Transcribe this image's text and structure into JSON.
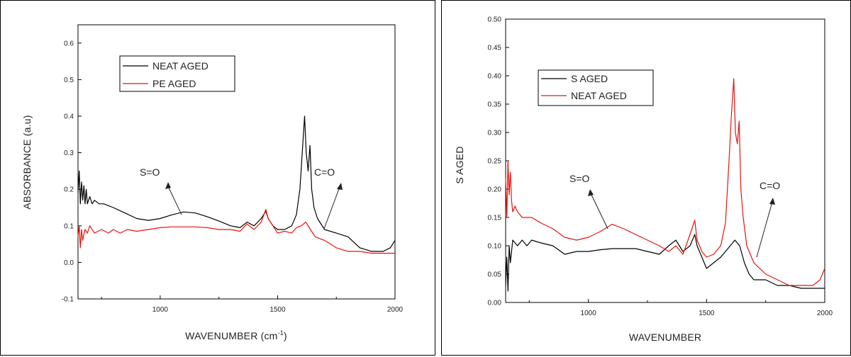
{
  "chart_data": [
    {
      "type": "line",
      "xlabel": "WAVENUMBER (cm",
      "xlabel_superscript": "-1",
      "xlabel_suffix": ")",
      "ylabel": "ABSORBANCE (a.u)",
      "xlim": [
        650,
        2000
      ],
      "ylim": [
        -0.1,
        0.65
      ],
      "x_ticks": [
        1000,
        1500,
        2000
      ],
      "y_ticks": [
        -0.1,
        0.0,
        0.1,
        0.2,
        0.3,
        0.4,
        0.5,
        0.6
      ],
      "y_tick_labels": [
        "-0.1",
        "0.0",
        "0.1",
        "0.2",
        "0.3",
        "0.4",
        "0.5",
        "0.6"
      ],
      "legend_placement": "upper-left",
      "series": [
        {
          "name": "NEAT AGED",
          "color": "#000000",
          "points": [
            [
              650,
              0.19
            ],
            [
              655,
              0.25
            ],
            [
              660,
              0.16
            ],
            [
              665,
              0.22
            ],
            [
              670,
              0.17
            ],
            [
              675,
              0.21
            ],
            [
              680,
              0.16
            ],
            [
              685,
              0.2
            ],
            [
              690,
              0.16
            ],
            [
              700,
              0.18
            ],
            [
              710,
              0.16
            ],
            [
              720,
              0.17
            ],
            [
              740,
              0.16
            ],
            [
              760,
              0.16
            ],
            [
              800,
              0.15
            ],
            [
              850,
              0.135
            ],
            [
              900,
              0.12
            ],
            [
              950,
              0.115
            ],
            [
              1000,
              0.12
            ],
            [
              1050,
              0.13
            ],
            [
              1100,
              0.138
            ],
            [
              1150,
              0.135
            ],
            [
              1200,
              0.125
            ],
            [
              1250,
              0.113
            ],
            [
              1300,
              0.1
            ],
            [
              1340,
              0.095
            ],
            [
              1370,
              0.11
            ],
            [
              1400,
              0.1
            ],
            [
              1430,
              0.12
            ],
            [
              1450,
              0.14
            ],
            [
              1460,
              0.12
            ],
            [
              1480,
              0.1
            ],
            [
              1500,
              0.09
            ],
            [
              1530,
              0.09
            ],
            [
              1560,
              0.1
            ],
            [
              1580,
              0.13
            ],
            [
              1595,
              0.2
            ],
            [
              1605,
              0.3
            ],
            [
              1615,
              0.4
            ],
            [
              1622,
              0.3
            ],
            [
              1630,
              0.25
            ],
            [
              1638,
              0.32
            ],
            [
              1645,
              0.2
            ],
            [
              1655,
              0.15
            ],
            [
              1670,
              0.12
            ],
            [
              1700,
              0.09
            ],
            [
              1750,
              0.08
            ],
            [
              1800,
              0.07
            ],
            [
              1850,
              0.04
            ],
            [
              1900,
              0.03
            ],
            [
              1950,
              0.03
            ],
            [
              1980,
              0.04
            ],
            [
              2000,
              0.06
            ]
          ]
        },
        {
          "name": "PE AGED",
          "color": "#e8140e",
          "points": [
            [
              650,
              0.07
            ],
            [
              655,
              0.1
            ],
            [
              660,
              0.04
            ],
            [
              665,
              0.09
            ],
            [
              670,
              0.06
            ],
            [
              680,
              0.09
            ],
            [
              690,
              0.08
            ],
            [
              700,
              0.1
            ],
            [
              720,
              0.08
            ],
            [
              750,
              0.09
            ],
            [
              780,
              0.08
            ],
            [
              800,
              0.09
            ],
            [
              830,
              0.08
            ],
            [
              860,
              0.09
            ],
            [
              900,
              0.085
            ],
            [
              950,
              0.09
            ],
            [
              1000,
              0.095
            ],
            [
              1050,
              0.097
            ],
            [
              1100,
              0.097
            ],
            [
              1150,
              0.097
            ],
            [
              1200,
              0.095
            ],
            [
              1250,
              0.09
            ],
            [
              1300,
              0.09
            ],
            [
              1340,
              0.085
            ],
            [
              1370,
              0.105
            ],
            [
              1400,
              0.09
            ],
            [
              1430,
              0.11
            ],
            [
              1450,
              0.145
            ],
            [
              1460,
              0.12
            ],
            [
              1480,
              0.1
            ],
            [
              1500,
              0.08
            ],
            [
              1530,
              0.085
            ],
            [
              1560,
              0.08
            ],
            [
              1580,
              0.095
            ],
            [
              1600,
              0.1
            ],
            [
              1620,
              0.11
            ],
            [
              1640,
              0.09
            ],
            [
              1660,
              0.07
            ],
            [
              1700,
              0.06
            ],
            [
              1750,
              0.04
            ],
            [
              1800,
              0.03
            ],
            [
              1850,
              0.03
            ],
            [
              1900,
              0.025
            ],
            [
              1950,
              0.025
            ],
            [
              2000,
              0.025
            ]
          ]
        }
      ],
      "annotations": [
        {
          "text": "S=O",
          "x": 1000,
          "y": 0.18,
          "arrow_to": [
            1000,
            0.22
          ]
        },
        {
          "text": "C=O",
          "x": 1680,
          "y": 0.2,
          "arrow_to": [
            1680,
            0.21
          ]
        }
      ]
    },
    {
      "type": "line",
      "xlabel": "WAVENUMBER",
      "ylabel": "S AGED",
      "xlim": [
        650,
        2000
      ],
      "ylim": [
        0.0,
        0.5
      ],
      "x_ticks": [
        1000,
        1500,
        2000
      ],
      "y_ticks": [
        0.0,
        0.05,
        0.1,
        0.15,
        0.2,
        0.25,
        0.3,
        0.35,
        0.4,
        0.45,
        0.5
      ],
      "y_tick_labels": [
        "0.00",
        "0.05",
        "0.10",
        "0.15",
        "0.20",
        "0.25",
        "0.30",
        "0.35",
        "0.40",
        "0.45",
        "0.50"
      ],
      "legend_placement": "upper-left",
      "series": [
        {
          "name": "S AGED",
          "color": "#000000",
          "points": [
            [
              650,
              0.03
            ],
            [
              655,
              0.08
            ],
            [
              660,
              0.02
            ],
            [
              665,
              0.1
            ],
            [
              670,
              0.07
            ],
            [
              680,
              0.11
            ],
            [
              700,
              0.1
            ],
            [
              720,
              0.11
            ],
            [
              740,
              0.1
            ],
            [
              760,
              0.11
            ],
            [
              800,
              0.105
            ],
            [
              850,
              0.1
            ],
            [
              900,
              0.085
            ],
            [
              950,
              0.09
            ],
            [
              1000,
              0.09
            ],
            [
              1050,
              0.093
            ],
            [
              1100,
              0.095
            ],
            [
              1150,
              0.095
            ],
            [
              1200,
              0.095
            ],
            [
              1250,
              0.09
            ],
            [
              1300,
              0.085
            ],
            [
              1340,
              0.1
            ],
            [
              1370,
              0.11
            ],
            [
              1400,
              0.09
            ],
            [
              1430,
              0.1
            ],
            [
              1450,
              0.12
            ],
            [
              1460,
              0.1
            ],
            [
              1480,
              0.08
            ],
            [
              1500,
              0.06
            ],
            [
              1530,
              0.07
            ],
            [
              1560,
              0.08
            ],
            [
              1580,
              0.09
            ],
            [
              1600,
              0.1
            ],
            [
              1620,
              0.11
            ],
            [
              1640,
              0.1
            ],
            [
              1660,
              0.07
            ],
            [
              1680,
              0.05
            ],
            [
              1700,
              0.04
            ],
            [
              1750,
              0.04
            ],
            [
              1800,
              0.03
            ],
            [
              1850,
              0.03
            ],
            [
              1900,
              0.025
            ],
            [
              1950,
              0.025
            ],
            [
              2000,
              0.025
            ]
          ]
        },
        {
          "name": "NEAT AGED",
          "color": "#e8140e",
          "points": [
            [
              650,
              0.22
            ],
            [
              655,
              0.15
            ],
            [
              660,
              0.25
            ],
            [
              665,
              0.19
            ],
            [
              670,
              0.23
            ],
            [
              675,
              0.18
            ],
            [
              680,
              0.16
            ],
            [
              690,
              0.17
            ],
            [
              700,
              0.16
            ],
            [
              720,
              0.15
            ],
            [
              760,
              0.15
            ],
            [
              800,
              0.14
            ],
            [
              850,
              0.13
            ],
            [
              900,
              0.115
            ],
            [
              950,
              0.11
            ],
            [
              1000,
              0.115
            ],
            [
              1050,
              0.125
            ],
            [
              1100,
              0.138
            ],
            [
              1150,
              0.13
            ],
            [
              1200,
              0.12
            ],
            [
              1250,
              0.11
            ],
            [
              1300,
              0.1
            ],
            [
              1340,
              0.09
            ],
            [
              1370,
              0.1
            ],
            [
              1400,
              0.085
            ],
            [
              1430,
              0.12
            ],
            [
              1450,
              0.145
            ],
            [
              1460,
              0.11
            ],
            [
              1480,
              0.09
            ],
            [
              1500,
              0.08
            ],
            [
              1530,
              0.085
            ],
            [
              1560,
              0.1
            ],
            [
              1580,
              0.14
            ],
            [
              1595,
              0.25
            ],
            [
              1605,
              0.33
            ],
            [
              1615,
              0.395
            ],
            [
              1622,
              0.3
            ],
            [
              1630,
              0.28
            ],
            [
              1638,
              0.32
            ],
            [
              1645,
              0.2
            ],
            [
              1655,
              0.15
            ],
            [
              1670,
              0.1
            ],
            [
              1700,
              0.07
            ],
            [
              1750,
              0.05
            ],
            [
              1800,
              0.04
            ],
            [
              1850,
              0.03
            ],
            [
              1900,
              0.03
            ],
            [
              1950,
              0.03
            ],
            [
              1980,
              0.04
            ],
            [
              2000,
              0.06
            ]
          ]
        }
      ],
      "annotations": [
        {
          "text": "S=O",
          "x": 1000,
          "y": 0.21,
          "arrow_to": [
            1000,
            0.15
          ]
        },
        {
          "text": "C=O",
          "x": 1700,
          "y": 0.17,
          "arrow_to": [
            1690,
            0.13
          ]
        }
      ]
    }
  ]
}
